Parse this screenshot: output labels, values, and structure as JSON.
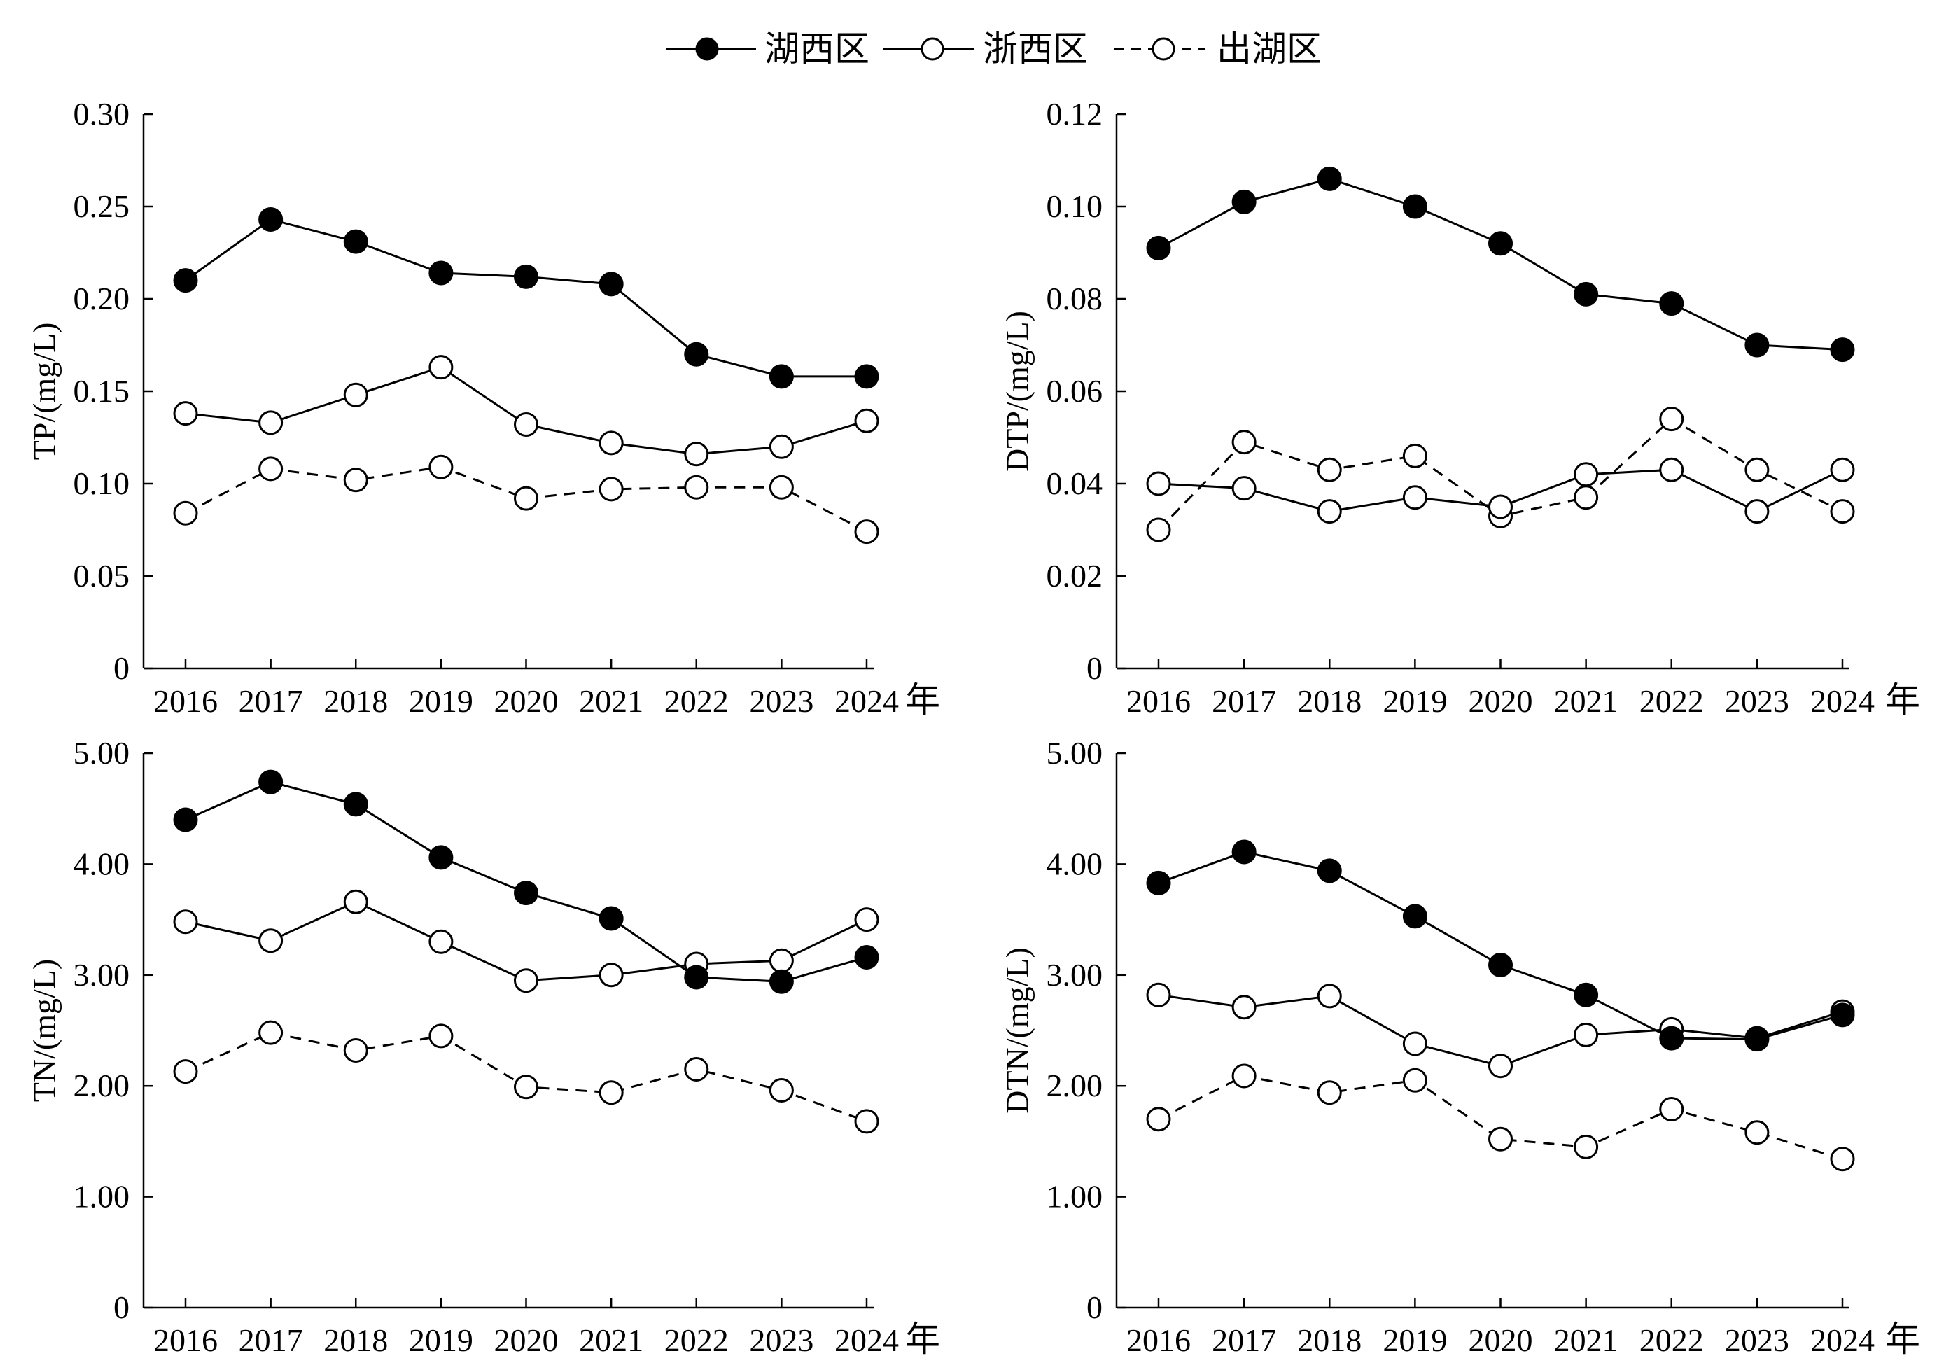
{
  "legend": {
    "items": [
      {
        "label": "湖西区",
        "marker": "filled",
        "dash": "solid"
      },
      {
        "label": "浙西区",
        "marker": "open",
        "dash": "solid"
      },
      {
        "label": "出湖区",
        "marker": "open",
        "dash": "dashed"
      }
    ]
  },
  "colors": {
    "line": "#000000",
    "marker_filled": "#000000",
    "marker_open": "#ffffff"
  },
  "chart_data": [
    {
      "type": "line",
      "ylabel": "TP/(mg/L)",
      "x_unit": "年",
      "categories": [
        "2016",
        "2017",
        "2018",
        "2019",
        "2020",
        "2021",
        "2022",
        "2023",
        "2024"
      ],
      "ylim": [
        0,
        0.3
      ],
      "yticks": [
        "0",
        "0.05",
        "0.10",
        "0.15",
        "0.20",
        "0.25",
        "0.30"
      ],
      "series": [
        {
          "name": "湖西区",
          "values": [
            0.21,
            0.243,
            0.231,
            0.214,
            0.212,
            0.208,
            0.17,
            0.158,
            0.158
          ]
        },
        {
          "name": "浙西区",
          "values": [
            0.138,
            0.133,
            0.148,
            0.163,
            0.132,
            0.122,
            0.116,
            0.12,
            0.134
          ]
        },
        {
          "name": "出湖区",
          "values": [
            0.084,
            0.108,
            0.102,
            0.109,
            0.092,
            0.097,
            0.098,
            0.098,
            0.074
          ]
        }
      ]
    },
    {
      "type": "line",
      "ylabel": "DTP/(mg/L)",
      "x_unit": "年",
      "categories": [
        "2016",
        "2017",
        "2018",
        "2019",
        "2020",
        "2021",
        "2022",
        "2023",
        "2024"
      ],
      "ylim": [
        0,
        0.12
      ],
      "yticks": [
        "0",
        "0.02",
        "0.04",
        "0.06",
        "0.08",
        "0.10",
        "0.12"
      ],
      "series": [
        {
          "name": "湖西区",
          "values": [
            0.091,
            0.101,
            0.106,
            0.1,
            0.092,
            0.081,
            0.079,
            0.07,
            0.069
          ]
        },
        {
          "name": "浙西区",
          "values": [
            0.04,
            0.039,
            0.034,
            0.037,
            0.035,
            0.042,
            0.043,
            0.034,
            0.043
          ]
        },
        {
          "name": "出湖区",
          "values": [
            0.03,
            0.049,
            0.043,
            0.046,
            0.033,
            0.037,
            0.054,
            0.043,
            0.034
          ]
        }
      ]
    },
    {
      "type": "line",
      "ylabel": "TN/(mg/L)",
      "x_unit": "年",
      "categories": [
        "2016",
        "2017",
        "2018",
        "2019",
        "2020",
        "2021",
        "2022",
        "2023",
        "2024"
      ],
      "ylim": [
        0,
        5.0
      ],
      "yticks": [
        "0",
        "1.00",
        "2.00",
        "3.00",
        "4.00",
        "5.00"
      ],
      "series": [
        {
          "name": "湖西区",
          "values": [
            4.4,
            4.74,
            4.54,
            4.06,
            3.74,
            3.51,
            2.98,
            2.94,
            3.16
          ]
        },
        {
          "name": "浙西区",
          "values": [
            3.48,
            3.31,
            3.66,
            3.3,
            2.95,
            3.0,
            3.1,
            3.13,
            3.5
          ]
        },
        {
          "name": "出湖区",
          "values": [
            2.13,
            2.48,
            2.32,
            2.45,
            1.99,
            1.94,
            2.15,
            1.96,
            1.68
          ]
        }
      ]
    },
    {
      "type": "line",
      "ylabel": "DTN/(mg/L)",
      "x_unit": "年",
      "categories": [
        "2016",
        "2017",
        "2018",
        "2019",
        "2020",
        "2021",
        "2022",
        "2023",
        "2024"
      ],
      "ylim": [
        0,
        5.0
      ],
      "yticks": [
        "0",
        "1.00",
        "2.00",
        "3.00",
        "4.00",
        "5.00"
      ],
      "series": [
        {
          "name": "湖西区",
          "values": [
            3.83,
            4.11,
            3.94,
            3.53,
            3.09,
            2.82,
            2.43,
            2.42,
            2.64
          ]
        },
        {
          "name": "浙西区",
          "values": [
            2.82,
            2.71,
            2.81,
            2.38,
            2.18,
            2.46,
            2.51,
            2.43,
            2.67
          ]
        },
        {
          "name": "出湖区",
          "values": [
            1.7,
            2.09,
            1.94,
            2.05,
            1.52,
            1.45,
            1.79,
            1.58,
            1.34
          ]
        }
      ]
    }
  ]
}
